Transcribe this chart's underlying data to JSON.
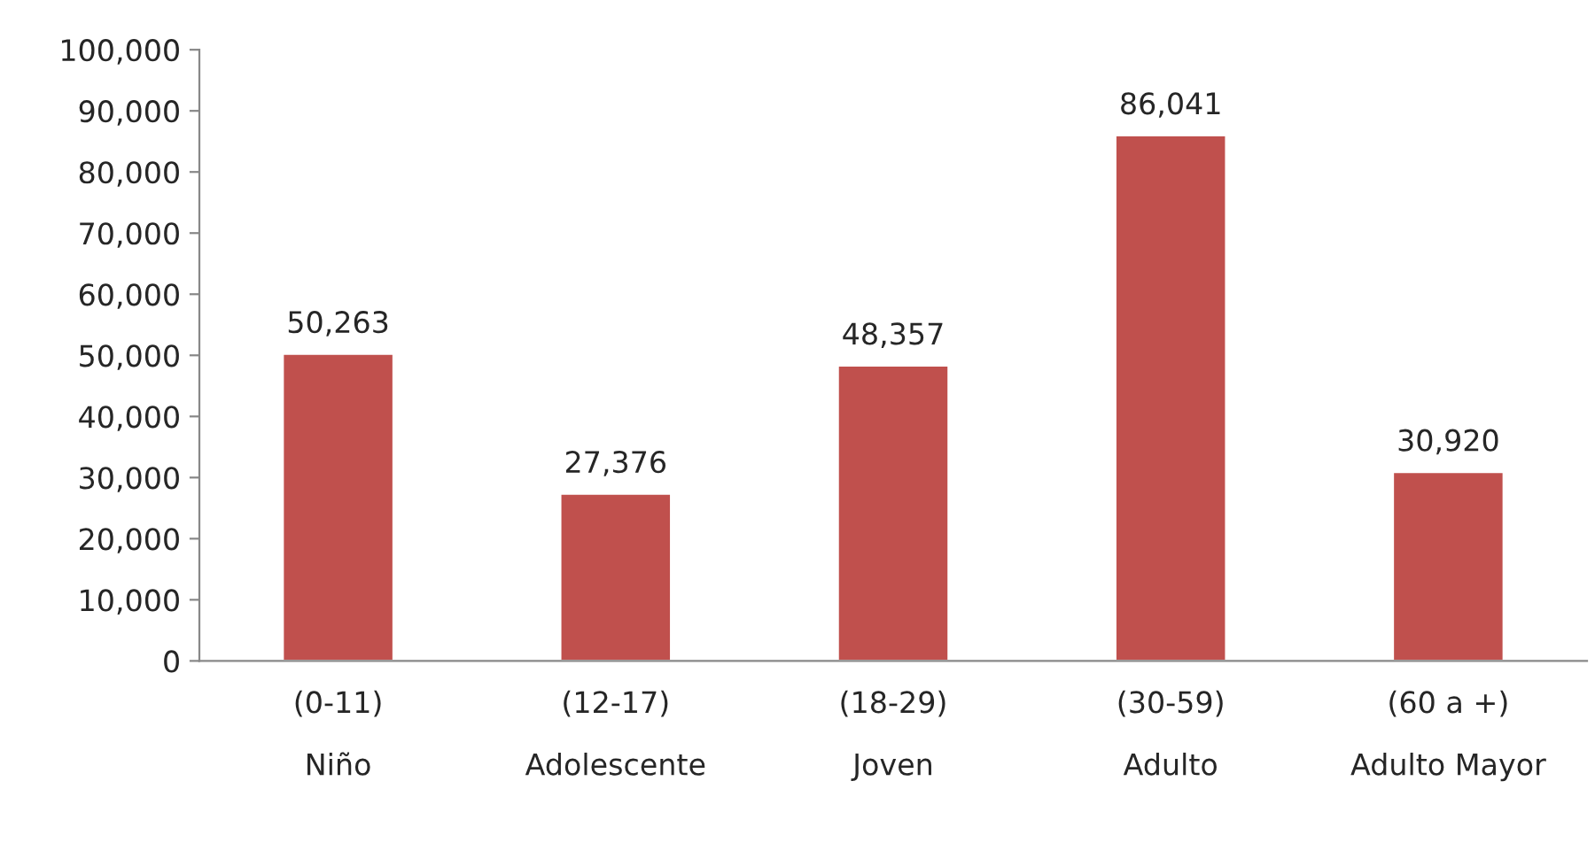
{
  "chart_data": {
    "type": "bar",
    "categories": [
      "(0-11)\nNiño",
      "(12-17)\nAdolescente",
      "(18-29)\nJoven",
      "(30-59)\nAdulto",
      "(60 a +)\nAdulto Mayor"
    ],
    "values": [
      50263,
      27376,
      48357,
      86041,
      30920
    ],
    "color": "#c0504d",
    "ylim": [
      0,
      100000
    ],
    "yticks": [
      {
        "value": 0,
        "label": "0"
      },
      {
        "value": 10000,
        "label": "10,000"
      },
      {
        "value": 20000,
        "label": "20,000"
      },
      {
        "value": 30000,
        "label": "30,000"
      },
      {
        "value": 40000,
        "label": "40,000"
      },
      {
        "value": 50000,
        "label": "50,000"
      },
      {
        "value": 60000,
        "label": "60,000"
      },
      {
        "value": 70000,
        "label": "70,000"
      },
      {
        "value": 80000,
        "label": "80,000"
      },
      {
        "value": 90000,
        "label": "90,000"
      },
      {
        "value": 100000,
        "label": "100,000"
      }
    ],
    "value_labels": [
      "50,263",
      "27,376",
      "48,357",
      "86,041",
      "30,920"
    ],
    "grid": false,
    "legend": false
  }
}
